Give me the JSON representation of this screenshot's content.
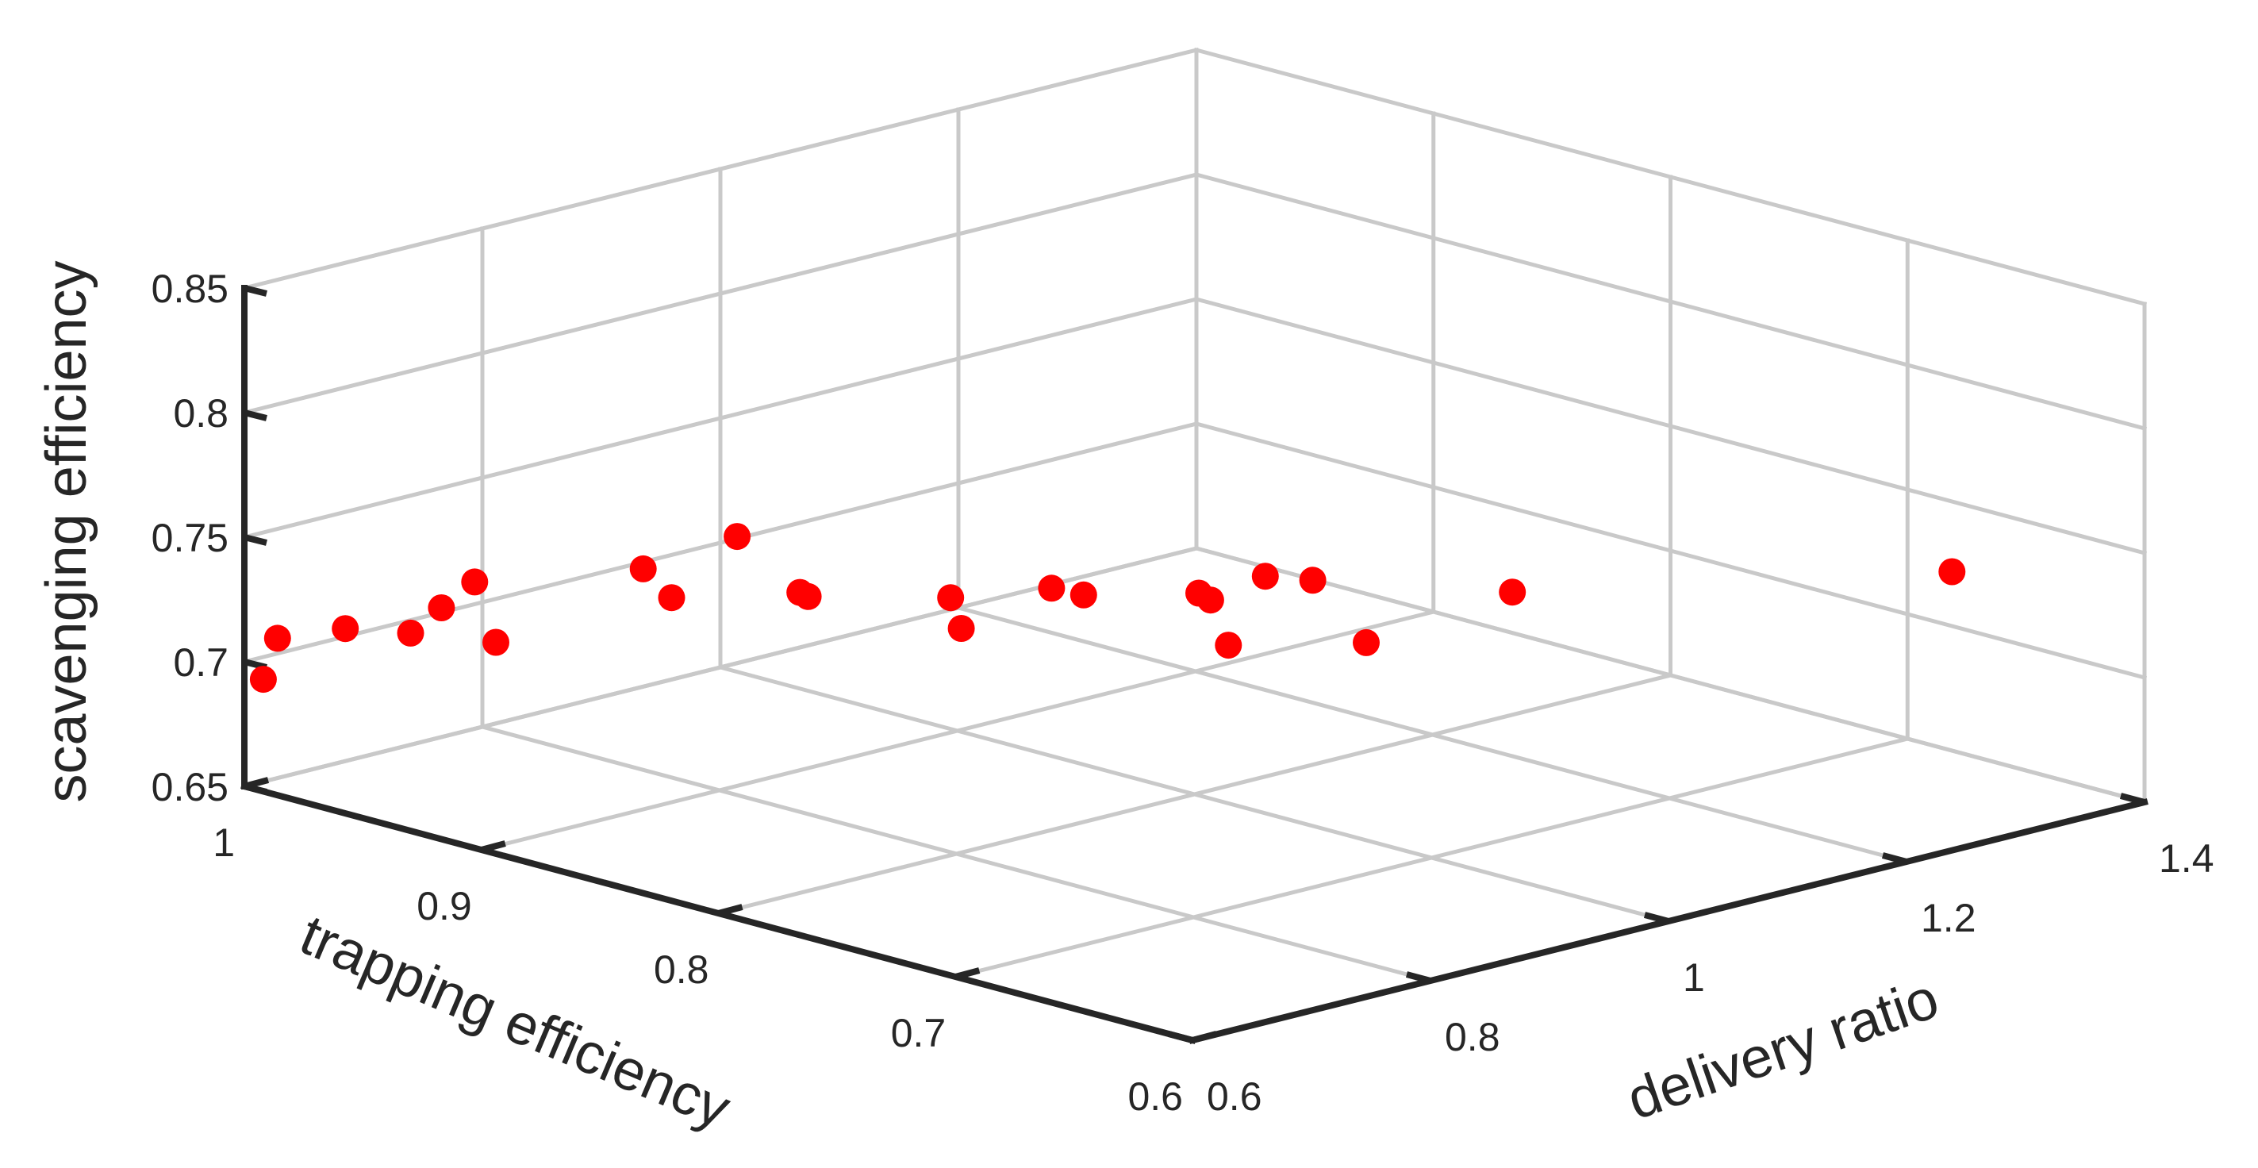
{
  "chart_data": {
    "type": "scatter",
    "title": "",
    "xlabel": "delivery ratio",
    "ylabel": "trapping efficiency",
    "zlabel": "scavenging efficiency",
    "xlim": [
      0.6,
      1.4
    ],
    "ylim": [
      0.6,
      1.0
    ],
    "zlim": [
      0.65,
      0.85
    ],
    "x_ticks": [
      "0.6",
      "0.8",
      "1",
      "1.2",
      "1.4"
    ],
    "y_ticks": [
      "0.6",
      "0.7",
      "0.8",
      "0.9",
      "1"
    ],
    "z_ticks": [
      "0.65",
      "0.7",
      "0.75",
      "0.8",
      "0.85"
    ],
    "grid": true,
    "marker_color": "#ff0000",
    "points": [
      {
        "x": 0.6,
        "y": 0.992,
        "z": 0.695
      },
      {
        "x": 0.6,
        "y": 0.986,
        "z": 0.713
      },
      {
        "x": 0.633,
        "y": 0.974,
        "z": 0.716
      },
      {
        "x": 0.654,
        "y": 0.957,
        "z": 0.716
      },
      {
        "x": 0.664,
        "y": 0.949,
        "z": 0.727
      },
      {
        "x": 0.676,
        "y": 0.941,
        "z": 0.738
      },
      {
        "x": 0.66,
        "y": 0.924,
        "z": 0.72
      },
      {
        "x": 0.73,
        "y": 0.897,
        "z": 0.748
      },
      {
        "x": 0.728,
        "y": 0.884,
        "z": 0.74
      },
      {
        "x": 0.791,
        "y": 0.888,
        "z": 0.756
      },
      {
        "x": 0.776,
        "y": 0.854,
        "z": 0.744
      },
      {
        "x": 0.773,
        "y": 0.849,
        "z": 0.744
      },
      {
        "x": 0.829,
        "y": 0.817,
        "z": 0.745
      },
      {
        "x": 0.816,
        "y": 0.806,
        "z": 0.737
      },
      {
        "x": 0.872,
        "y": 0.796,
        "z": 0.749
      },
      {
        "x": 0.875,
        "y": 0.784,
        "z": 0.749
      },
      {
        "x": 0.924,
        "y": 0.76,
        "z": 0.75
      },
      {
        "x": 0.922,
        "y": 0.754,
        "z": 0.749
      },
      {
        "x": 0.913,
        "y": 0.742,
        "z": 0.735
      },
      {
        "x": 0.952,
        "y": 0.746,
        "z": 0.757
      },
      {
        "x": 0.962,
        "y": 0.731,
        "z": 0.758
      },
      {
        "x": 0.977,
        "y": 0.716,
        "z": 0.735
      },
      {
        "x": 1.062,
        "y": 0.697,
        "z": 0.75
      },
      {
        "x": 1.286,
        "y": 0.624,
        "z": 0.75
      }
    ]
  }
}
